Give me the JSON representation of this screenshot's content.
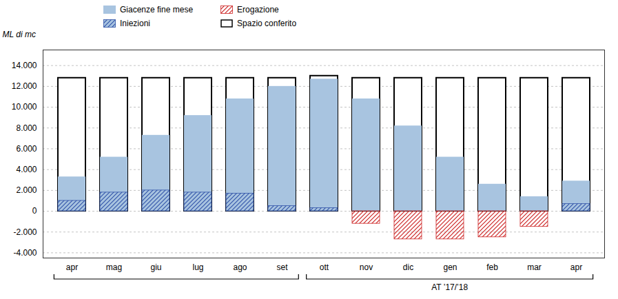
{
  "chart_data": {
    "type": "bar",
    "ylabel": "ML di mc",
    "categories": [
      "apr",
      "mag",
      "giu",
      "lug",
      "ago",
      "set",
      "ott",
      "nov",
      "dic",
      "gen",
      "feb",
      "mar",
      "apr"
    ],
    "series": [
      {
        "name": "Giacenze fine mese",
        "type": "bar",
        "color": "#a8c4e0",
        "values": [
          3300,
          5200,
          7300,
          9200,
          10800,
          12000,
          12700,
          10800,
          8200,
          5200,
          2600,
          1400,
          2900
        ]
      },
      {
        "name": "Erogazione",
        "type": "hatch",
        "color": "#cc2222",
        "values": [
          0,
          0,
          0,
          0,
          0,
          0,
          0,
          -1200,
          -2700,
          -2700,
          -2500,
          -1500,
          0
        ]
      },
      {
        "name": "Iniezioni",
        "type": "hatch",
        "color": "#3355aa",
        "values": [
          1000,
          1800,
          2000,
          1800,
          1700,
          500,
          300,
          0,
          0,
          0,
          0,
          0,
          700
        ]
      },
      {
        "name": "Spazio conferito",
        "type": "outline",
        "color": "#000000",
        "values": [
          12800,
          12800,
          12800,
          12800,
          12800,
          12800,
          13000,
          12800,
          12800,
          12800,
          12800,
          12800,
          12800
        ]
      }
    ],
    "stacked": false,
    "ylim": [
      -4500,
      15500
    ],
    "yticks": [
      {
        "value": -4000,
        "label": "-4.000"
      },
      {
        "value": -2000,
        "label": "-2.000"
      },
      0,
      {
        "value": 2000,
        "label": "2.000"
      },
      {
        "value": 4000,
        "label": "4.000"
      },
      {
        "value": 6000,
        "label": "6.000"
      },
      {
        "value": 8000,
        "label": "8.000"
      },
      {
        "value": 10000,
        "label": "10.000"
      },
      {
        "value": 12000,
        "label": "12.000"
      },
      {
        "value": 14000,
        "label": "14.000"
      }
    ],
    "grid": true,
    "legend": "top",
    "annotations": [
      {
        "text": "AT ’17/’18",
        "from": "ott",
        "to": "apr"
      }
    ]
  }
}
